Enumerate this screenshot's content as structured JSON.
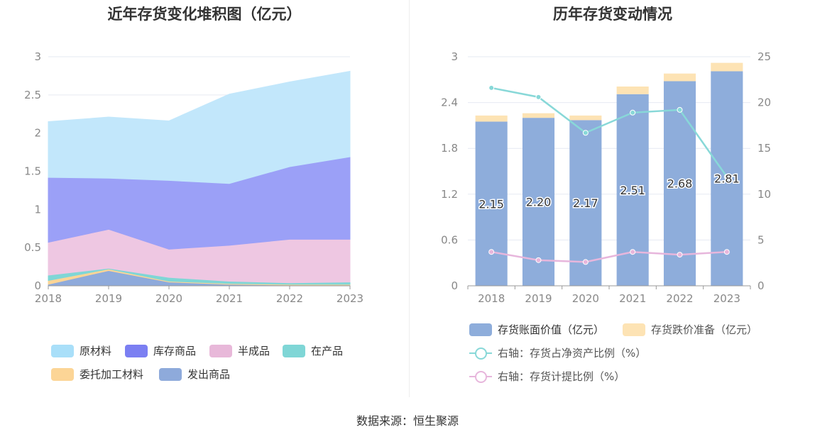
{
  "left_chart": {
    "title": "近年存货变化堆积图（亿元）",
    "legend": [
      "原材料",
      "库存商品",
      "半成品",
      "在产品",
      "委托加工材料",
      "发出商品"
    ]
  },
  "right_chart": {
    "title": "历年存货变动情况",
    "legend": [
      "存货账面价值（亿元）",
      "存货跌价准备（亿元）",
      "右轴：存货占净资产比例（%）",
      "右轴：存货计提比例（%）"
    ]
  },
  "source": "数据来源：恒生聚源",
  "chart_data": [
    {
      "type": "area",
      "title": "近年存货变化堆积图（亿元）",
      "stacked": true,
      "x": [
        "2018",
        "2019",
        "2020",
        "2021",
        "2022",
        "2023"
      ],
      "y_ticks": [
        "0",
        "0.5",
        "1",
        "1.5",
        "2",
        "2.5",
        "3"
      ],
      "ylim": [
        0,
        3
      ],
      "grid": true,
      "legend_position": "bottom",
      "series": [
        {
          "name": "发出商品",
          "color": "#8eaadb",
          "values": [
            0.02,
            0.2,
            0.05,
            0.02,
            0.01,
            0.01
          ]
        },
        {
          "name": "委托加工材料",
          "color": "#fcd596",
          "values": [
            0.05,
            0.02,
            0.01,
            0.01,
            0.01,
            0.01
          ]
        },
        {
          "name": "在产品",
          "color": "#7fd6d6",
          "values": [
            0.07,
            0.01,
            0.05,
            0.03,
            0.02,
            0.03
          ]
        },
        {
          "name": "半成品",
          "color": "#eec7e2",
          "values": [
            0.43,
            0.51,
            0.37,
            0.47,
            0.57,
            0.56
          ]
        },
        {
          "name": "库存商品",
          "color": "#9ba0f7",
          "values": [
            0.85,
            0.67,
            0.9,
            0.81,
            0.95,
            1.08
          ]
        },
        {
          "name": "原材料",
          "color": "#c2e7fb",
          "values": [
            0.73,
            0.8,
            0.78,
            1.17,
            1.11,
            1.12
          ]
        }
      ]
    },
    {
      "type": "bar",
      "title": "历年存货变动情况",
      "categories": [
        "2018",
        "2019",
        "2020",
        "2021",
        "2022",
        "2023"
      ],
      "y_ticks": [
        "0",
        "0.6",
        "1.2",
        "1.8",
        "2.4",
        "3"
      ],
      "y2_ticks": [
        "0",
        "5",
        "10",
        "15",
        "20",
        "25"
      ],
      "ylim": [
        0,
        3
      ],
      "y2lim": [
        0,
        25
      ],
      "stacked": true,
      "grid": true,
      "legend_position": "bottom",
      "series": [
        {
          "name": "存货账面价值（亿元）",
          "type": "bar",
          "color": "#8eaddb",
          "values": [
            2.15,
            2.2,
            2.17,
            2.51,
            2.68,
            2.81
          ],
          "labels": [
            "2.15",
            "2.20",
            "2.17",
            "2.51",
            "2.68",
            "2.81"
          ]
        },
        {
          "name": "存货跌价准备（亿元）",
          "type": "bar",
          "color": "#fde3b4",
          "values": [
            0.08,
            0.06,
            0.06,
            0.1,
            0.1,
            0.11
          ]
        },
        {
          "name": "右轴：存货占净资产比例（%）",
          "type": "line",
          "axis": "right",
          "color": "#88d8d8",
          "values": [
            21.6,
            20.6,
            16.7,
            18.9,
            19.2,
            11.9
          ]
        },
        {
          "name": "右轴：存货计提比例（%）",
          "type": "line",
          "axis": "right",
          "color": "#e7b6dc",
          "values": [
            3.7,
            2.8,
            2.6,
            3.7,
            3.4,
            3.7
          ]
        }
      ]
    }
  ]
}
